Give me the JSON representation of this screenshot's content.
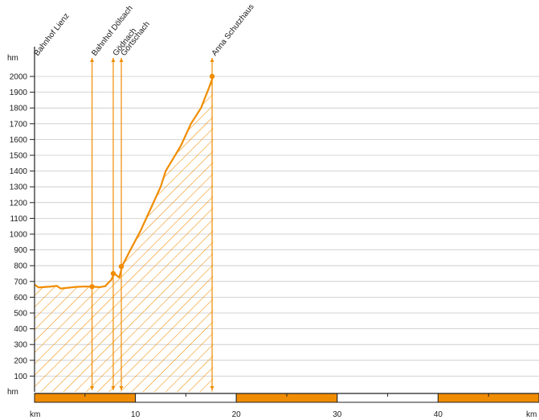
{
  "chart_data": {
    "type": "area",
    "title": "",
    "xlabel": "km",
    "ylabel": "hm",
    "x_unit_left": "km",
    "x_unit_right": "km",
    "y_unit_top": "hm",
    "y_unit_bottom": "hm",
    "xlim": [
      0,
      50
    ],
    "ylim": [
      0,
      2000
    ],
    "yticks": [
      100,
      200,
      300,
      400,
      500,
      600,
      700,
      800,
      900,
      1000,
      1100,
      1200,
      1300,
      1400,
      1500,
      1600,
      1700,
      1800,
      1900,
      2000
    ],
    "xtick_labels": [
      "10",
      "20",
      "30",
      "40"
    ],
    "xticks": [
      10,
      20,
      30,
      40
    ],
    "grid": true,
    "colors": {
      "profile": "#f08c00",
      "axis": "#222222",
      "grid": "#c8c8c8"
    },
    "profile": {
      "x": [
        0,
        0.4,
        1.5,
        2.2,
        2.6,
        4.0,
        5.0,
        5.7,
        6.5,
        7.0,
        7.6,
        7.9,
        8.4,
        8.7,
        9.5,
        10.5,
        11.5,
        12.5,
        13.0,
        14.5,
        15.5,
        16.5,
        17.3,
        17.7
      ],
      "y": [
        680,
        662,
        667,
        672,
        655,
        665,
        668,
        667,
        664,
        670,
        710,
        750,
        725,
        800,
        900,
        1020,
        1160,
        1300,
        1400,
        1560,
        1700,
        1800,
        1930,
        2000
      ]
    },
    "stops": [
      {
        "name": "Bahnhof Lienz",
        "km": 0,
        "alt": 680
      },
      {
        "name": "Bahnhof Dölsach",
        "km": 5.7,
        "alt": 667
      },
      {
        "name": "Gödnach",
        "km": 7.8,
        "alt": 750
      },
      {
        "name": "Görtschach",
        "km": 8.6,
        "alt": 795
      },
      {
        "name": "Anna Schutzhaus",
        "km": 17.6,
        "alt": 2000
      }
    ]
  }
}
